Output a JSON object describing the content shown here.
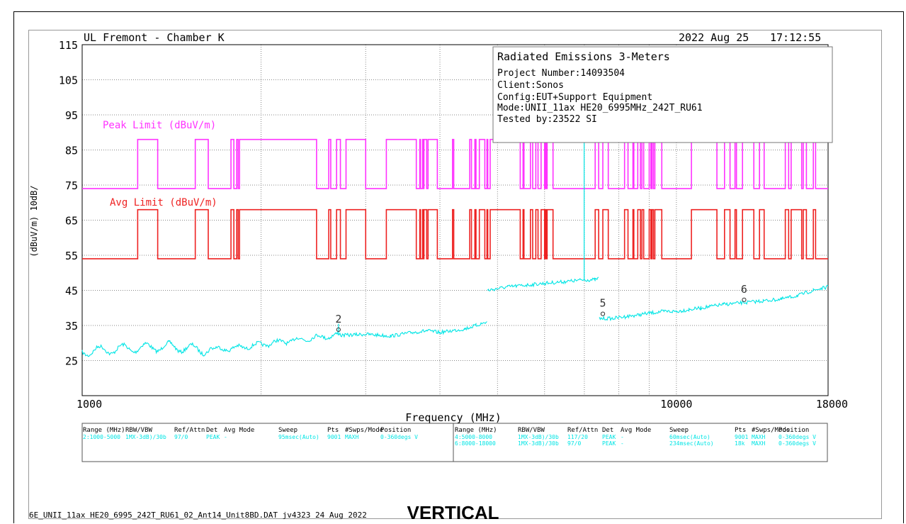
{
  "header": {
    "lab": "UL Fremont - Chamber K",
    "date": "2022 Aug 25",
    "time": "17:12:55"
  },
  "infobox": {
    "title": "Radiated Emissions 3-Meters",
    "lines": [
      "Project Number:14093504",
      "Client:Sonos",
      "Config:EUT+Support Equipment",
      "Mode:UNII_11ax HE20_6995MHz_242T_RU61",
      "Tested by:23522 SI"
    ]
  },
  "footer": {
    "filename": "6E_UNII_11ax HE20_6995_242T_RU61_02_Ant14_Unit8BD.DAT  jv4323 24 Aug 2022",
    "polarization": "VERTICAL"
  },
  "colors": {
    "peak": "#ff33ff",
    "avg": "#ee2222",
    "trace": "#00e5e5",
    "grid": "#888888"
  },
  "chart_data": {
    "type": "line",
    "xlabel": "Frequency (MHz)",
    "ylabel": "(dBuV/m)  10dB/",
    "xscale": "log",
    "xlim": [
      1000,
      18000
    ],
    "ylim": [
      15,
      115
    ],
    "x_ticks": [
      1000,
      10000,
      18000
    ],
    "x_tick_labels": [
      "1000",
      "10000",
      "18000"
    ],
    "y_ticks": [
      25,
      35,
      45,
      55,
      65,
      75,
      85,
      95,
      105,
      115
    ],
    "y_tick_labels": [
      "25",
      "35",
      "45",
      "55",
      "65",
      "75",
      "85",
      "95",
      "105",
      "115"
    ],
    "series": [
      {
        "name": "Peak Limit (dBuV/m)",
        "kind": "step",
        "low": 74,
        "high": 88,
        "high_bands": [
          [
            1240,
            1340
          ],
          [
            1550,
            1630
          ],
          [
            1780,
            1800
          ],
          [
            1820,
            1830
          ],
          [
            1840,
            2480
          ],
          [
            2600,
            2620
          ],
          [
            2680,
            2720
          ],
          [
            2780,
            3000
          ],
          [
            3250,
            3650
          ],
          [
            3700,
            3710
          ],
          [
            3740,
            3750
          ],
          [
            3760,
            3800
          ],
          [
            3820,
            3960
          ],
          [
            4200,
            4220
          ],
          [
            4490,
            4520
          ],
          [
            4580,
            4600
          ],
          [
            4660,
            4760
          ],
          [
            4800,
            4815
          ],
          [
            4860,
            5460
          ],
          [
            5520,
            5540
          ],
          [
            5680,
            5730
          ],
          [
            5800,
            5850
          ],
          [
            5920,
            6000
          ],
          [
            6020,
            6040
          ],
          [
            6060,
            6200
          ],
          [
            7300,
            7400
          ],
          [
            7520,
            7680
          ],
          [
            8180,
            8290
          ],
          [
            8450,
            8480
          ],
          [
            8610,
            8700
          ],
          [
            8750,
            8810
          ],
          [
            9000,
            9060
          ],
          [
            9100,
            9150
          ],
          [
            9200,
            9450
          ],
          [
            10600,
            11700
          ],
          [
            12050,
            12310
          ],
          [
            12550,
            12620
          ],
          [
            12920,
            13500
          ],
          [
            13800,
            14050
          ],
          [
            15250,
            15450
          ],
          [
            15600,
            16250
          ],
          [
            16350,
            16550
          ],
          [
            17000,
            17150
          ]
        ]
      },
      {
        "name": "Avg Limit (dBuV/m)",
        "kind": "step",
        "low": 54,
        "high": 68,
        "high_bands": [
          [
            1240,
            1340
          ],
          [
            1550,
            1630
          ],
          [
            1780,
            1800
          ],
          [
            1820,
            1830
          ],
          [
            1840,
            2480
          ],
          [
            2600,
            2620
          ],
          [
            2680,
            2720
          ],
          [
            2780,
            3000
          ],
          [
            3250,
            3650
          ],
          [
            3700,
            3710
          ],
          [
            3740,
            3750
          ],
          [
            3760,
            3800
          ],
          [
            3820,
            3960
          ],
          [
            4200,
            4220
          ],
          [
            4490,
            4520
          ],
          [
            4580,
            4600
          ],
          [
            4660,
            4760
          ],
          [
            4800,
            4815
          ],
          [
            4860,
            5460
          ],
          [
            5520,
            5540
          ],
          [
            5680,
            5730
          ],
          [
            5800,
            5850
          ],
          [
            5920,
            6000
          ],
          [
            6020,
            6040
          ],
          [
            6060,
            6200
          ],
          [
            7300,
            7400
          ],
          [
            7520,
            7680
          ],
          [
            8180,
            8290
          ],
          [
            8450,
            8480
          ],
          [
            8610,
            8700
          ],
          [
            8750,
            8810
          ],
          [
            9000,
            9060
          ],
          [
            9100,
            9150
          ],
          [
            9200,
            9450
          ],
          [
            10600,
            11700
          ],
          [
            12050,
            12310
          ],
          [
            12550,
            12620
          ],
          [
            12920,
            13500
          ],
          [
            13800,
            14050
          ],
          [
            15250,
            15450
          ],
          [
            15600,
            16250
          ],
          [
            16350,
            16550
          ],
          [
            17000,
            17150
          ]
        ]
      },
      {
        "name": "Measurement trace",
        "kind": "segments",
        "segments": [
          {
            "x": [
              1000,
              1200,
              1400,
              1600,
              1800,
              2200,
              2600,
              3000,
              3300,
              3600,
              3800,
              4000,
              4400,
              4600,
              4800
            ],
            "y": [
              27.5,
              28.5,
              29.0,
              28.0,
              28.5,
              30.5,
              32.0,
              32.5,
              32.0,
              33.0,
              33.5,
              33.0,
              34.0,
              35.0,
              36.0
            ]
          },
          {
            "x": [
              4810,
              5200,
              5600,
              6000,
              6500,
              7000,
              7300,
              7400
            ],
            "y": [
              45.0,
              46.0,
              46.5,
              47.0,
              47.5,
              48.0,
              48.0,
              48.5
            ]
          },
          {
            "x": [
              7420,
              7800,
              8200,
              8600,
              9000,
              9500,
              10000,
              10500,
              11000,
              11500,
              12000,
              13000,
              14000,
              15000,
              16000,
              17000,
              18000
            ],
            "y": [
              37.0,
              37.0,
              37.5,
              38.0,
              38.5,
              39.0,
              39.0,
              39.5,
              40.0,
              40.5,
              41.0,
              41.5,
              42.0,
              42.5,
              43.5,
              45.0,
              46.0
            ]
          }
        ],
        "spikes": [
          {
            "x": 6995,
            "y": 88
          },
          {
            "x": 2700,
            "y": 35.5
          }
        ]
      }
    ],
    "annotations": [
      {
        "label": "Peak Limit (dBuV/m)",
        "series": "peak"
      },
      {
        "label": "Avg Limit (dBuV/m)",
        "series": "avg"
      }
    ],
    "markers": [
      {
        "label": "2",
        "x": 2700,
        "y": 33
      },
      {
        "label": "5",
        "x": 7520,
        "y": 37.5
      },
      {
        "label": "6",
        "x": 13000,
        "y": 41.5
      }
    ]
  },
  "settings_table": {
    "headers": [
      "Range (MHz)",
      "RBW/VBW",
      "Ref/Attn",
      "Det",
      "Avg Mode",
      "Sweep",
      "Pts",
      "#Swps/Mode",
      "Position"
    ],
    "left_rows": [
      [
        "2:1000-5000",
        "1MX-3dB)/30b",
        "97/0",
        "PEAK",
        "-",
        "95msec(Auto)",
        "9001",
        "MAXH",
        "0-360degs V"
      ]
    ],
    "right_rows": [
      [
        "4:5000-8000",
        "1MX-3dB)/30b",
        "117/20",
        "PEAK",
        "-",
        "60msec(Auto)",
        "9001",
        "MAXH",
        "0-360degs V"
      ],
      [
        "6:8000-18000",
        "1MX-3dB)/30b",
        "97/0",
        "PEAK",
        "-",
        "234msec(Auto)",
        "18k",
        "MAXH",
        "0-360degs V"
      ]
    ]
  }
}
